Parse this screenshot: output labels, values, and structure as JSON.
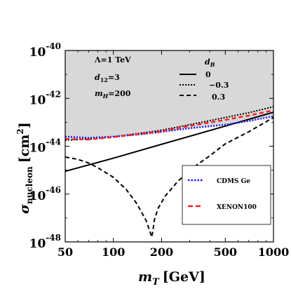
{
  "chart_data": {
    "type": "line",
    "xlabel_main": "m",
    "xlabel_sub": "T",
    "xlabel_unit": "[GeV]",
    "ylabel_main": "σ",
    "ylabel_sub": "nucleon",
    "ylabel_unit_pre": "[cm",
    "ylabel_unit_sup": "2",
    "ylabel_unit_post": "]",
    "xscale": "log",
    "yscale": "log",
    "xlim": [
      50,
      1000
    ],
    "ylim": [
      1e-48,
      1e-40
    ],
    "xticks": [
      {
        "value": 50,
        "label": "50"
      },
      {
        "value": 100,
        "label": "100"
      },
      {
        "value": 200,
        "label": "200"
      },
      {
        "value": 500,
        "label": "500"
      },
      {
        "value": 1000,
        "label": "1000"
      }
    ],
    "yticks": [
      {
        "exp": -48,
        "base": "10",
        "power": "-48"
      },
      {
        "exp": -46,
        "base": "10",
        "power": "-46"
      },
      {
        "exp": -44,
        "base": "10",
        "power": "-44"
      },
      {
        "exp": -42,
        "base": "10",
        "power": "-42"
      },
      {
        "exp": -40,
        "base": "10",
        "power": "-40"
      }
    ],
    "annotations": {
      "lambda": "Λ=1 TeV",
      "d12_main": "d",
      "d12_sub": "12",
      "d12_val": "=3",
      "mh_main": "m",
      "mh_sub": "H",
      "mh_val": "=200",
      "db_main": "d",
      "db_sub": "B"
    },
    "excluded_region_color": "#d8d8d8",
    "series": [
      {
        "name": "0",
        "style": "solid",
        "color": "#000000",
        "x": [
          50,
          100,
          200,
          500,
          1000
        ],
        "log10_y": [
          -45.05,
          -44.5,
          -43.92,
          -43.16,
          -42.58
        ]
      },
      {
        "name": "−0.3",
        "style": "dotted",
        "color": "#000000",
        "x": [
          50,
          70,
          100,
          150,
          200,
          300,
          500,
          700,
          1000
        ],
        "log10_y": [
          -43.75,
          -43.7,
          -43.6,
          -43.45,
          -43.33,
          -43.1,
          -42.8,
          -42.6,
          -42.35
        ]
      },
      {
        "name": "0.3",
        "style": "dashed",
        "color": "#000000",
        "x": [
          50,
          60,
          70,
          80,
          100,
          120,
          140,
          160,
          170,
          173,
          176,
          180,
          190,
          210,
          250,
          300,
          400,
          500,
          700,
          1000
        ],
        "log10_y": [
          -44.45,
          -44.55,
          -44.7,
          -44.9,
          -45.3,
          -45.8,
          -46.4,
          -47.1,
          -47.6,
          -47.8,
          -47.6,
          -47.1,
          -46.6,
          -46.1,
          -45.5,
          -45.0,
          -44.4,
          -43.9,
          -43.4,
          -42.8
        ]
      }
    ],
    "limits": [
      {
        "name": "CDMS Ge",
        "style": "dotted",
        "color": "#1a1aff",
        "x": [
          50,
          70,
          100,
          150,
          200,
          300,
          500,
          700,
          1000
        ],
        "log10_y": [
          -43.6,
          -43.65,
          -43.6,
          -43.5,
          -43.4,
          -43.25,
          -43.1,
          -42.95,
          -42.75
        ]
      },
      {
        "name": "XENON100",
        "style": "dashed",
        "color": "#ff2020",
        "x": [
          50,
          70,
          100,
          150,
          200,
          300,
          500,
          700,
          1000
        ],
        "log10_y": [
          -43.7,
          -43.72,
          -43.62,
          -43.48,
          -43.38,
          -43.15,
          -42.9,
          -42.72,
          -42.5
        ]
      }
    ]
  }
}
